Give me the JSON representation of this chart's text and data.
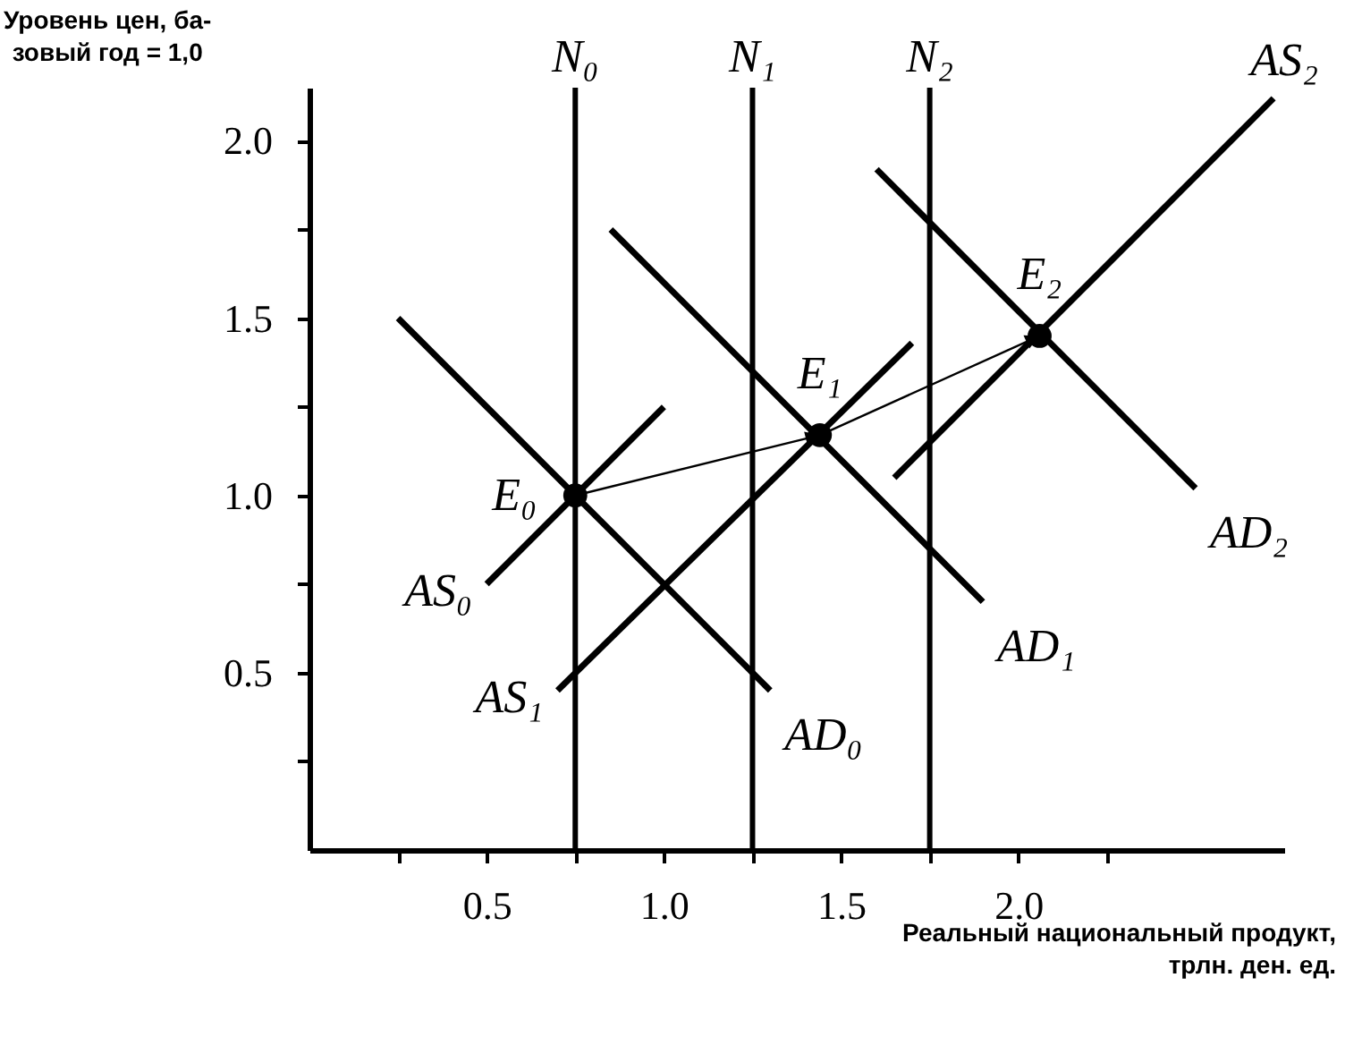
{
  "chart_data": {
    "type": "line",
    "xlabel": "Реальный национальный продукт,\nтрлн. ден. ед.",
    "ylabel": "Уровень цен, ба-\nзовый год = 1,0",
    "xlim": [
      0,
      2.75
    ],
    "ylim": [
      0,
      2.15
    ],
    "xticks": [
      {
        "value": 0.25,
        "label": null
      },
      {
        "value": 0.5,
        "label": "0.5"
      },
      {
        "value": 0.75,
        "label": null
      },
      {
        "value": 1,
        "label": "1.0"
      },
      {
        "value": 1.25,
        "label": null
      },
      {
        "value": 1.5,
        "label": "1.5"
      },
      {
        "value": 1.75,
        "label": null
      },
      {
        "value": 2,
        "label": "2.0"
      },
      {
        "value": 2.25,
        "label": null
      }
    ],
    "yticks": [
      {
        "value": 0.25,
        "label": null
      },
      {
        "value": 0.5,
        "label": "0.5"
      },
      {
        "value": 0.75,
        "label": null
      },
      {
        "value": 1,
        "label": "1.0"
      },
      {
        "value": 1.25,
        "label": null
      },
      {
        "value": 1.5,
        "label": "1.5"
      },
      {
        "value": 1.75,
        "label": null
      },
      {
        "value": 2,
        "label": "2.0"
      }
    ],
    "ref_lines": [
      {
        "axis": "x",
        "value": 0.75,
        "label": "N₀"
      },
      {
        "axis": "x",
        "value": 1.25,
        "label": "N₁"
      },
      {
        "axis": "x",
        "value": 1.75,
        "label": "N₂"
      }
    ],
    "series": [
      {
        "name": "AS₀",
        "color": "#000000",
        "x": [
          1.0,
          0.5
        ],
        "values": [
          1.25,
          0.75
        ]
      },
      {
        "name": "AS₁",
        "color": "#000000",
        "x": [
          1.7,
          0.7
        ],
        "values": [
          1.43,
          0.45
        ]
      },
      {
        "name": "AS₂",
        "color": "#000000",
        "x": [
          1.65,
          2.72
        ],
        "values": [
          1.05,
          2.12
        ]
      },
      {
        "name": "AD₀",
        "color": "#000000",
        "x": [
          0.25,
          1.3
        ],
        "values": [
          1.5,
          0.45
        ]
      },
      {
        "name": "AD₁",
        "color": "#000000",
        "x": [
          0.85,
          1.9
        ],
        "values": [
          1.75,
          0.7
        ]
      },
      {
        "name": "AD₂",
        "color": "#000000",
        "x": [
          1.6,
          2.5
        ],
        "values": [
          1.92,
          1.02
        ]
      },
      {
        "color": "#000000",
        "x": [
          0.75,
          1.44,
          2.06
        ],
        "values": [
          1.0,
          1.17,
          1.45
        ]
      },
      {
        "type": "scatter",
        "color": "#000000",
        "marker": "circle",
        "x": [
          0.75,
          1.44,
          2.06
        ],
        "values": [
          1.0,
          1.17,
          1.45
        ]
      }
    ],
    "annotations": [
      {
        "text": "E₀",
        "x": 0.75,
        "y": 1.0
      },
      {
        "text": "E₁",
        "x": 1.44,
        "y": 1.17
      },
      {
        "text": "E₂",
        "x": 2.06,
        "y": 1.45
      }
    ]
  }
}
